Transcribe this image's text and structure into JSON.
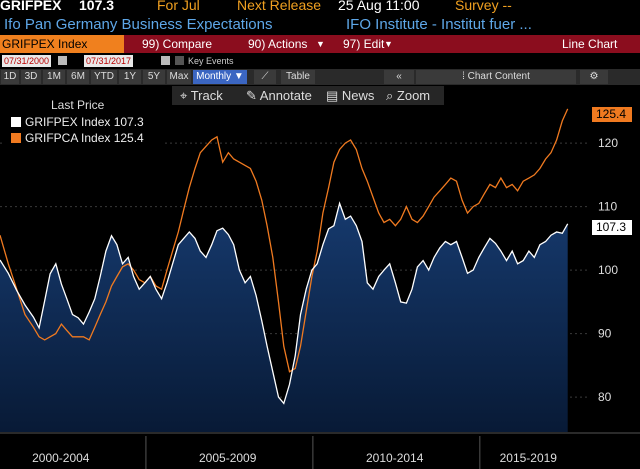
{
  "header": {
    "ticker": "GRIFPEX",
    "price": "107.3",
    "for_label": "For Jul",
    "next_release": "Next Release",
    "next_date": "25 Aug 11:00",
    "survey": "Survey --",
    "title": "Ifo Pan Germany Business Expectations",
    "source": "IFO Institute - Institut fuer ..."
  },
  "toolbar": {
    "ticker_box": "GRIFPEX Index",
    "compare": "99) Compare",
    "actions": "90) Actions",
    "edit": "97) Edit",
    "chart_type": "Line Chart"
  },
  "dates": {
    "start": "07/31/2000",
    "end": "07/31/2017",
    "key_events": "Key  Events"
  },
  "range_buttons": [
    "1D",
    "3D",
    "1M",
    "6M",
    "YTD",
    "1Y",
    "5Y",
    "Max"
  ],
  "period": "Monthly",
  "table_label": "Table",
  "chart_content": "Chart Content",
  "tools": {
    "track": "Track",
    "annotate": "Annotate",
    "news": "News",
    "zoom": "Zoom"
  },
  "legend": {
    "title": "Last Price",
    "s1": "GRIFPEX Index 107.3",
    "s2": "GRIFPCA Index 125.4"
  },
  "colors": {
    "white": "#ffffff",
    "orange": "#f07a20",
    "area": "#0c2a52",
    "toolbar": "#8b0d1e"
  },
  "chart_data": {
    "type": "line",
    "ylim": [
      74.5,
      129
    ],
    "y_ticks": [
      80,
      90,
      100,
      110,
      120
    ],
    "x_labels": [
      "2000-2004",
      "2005-2009",
      "2010-2014",
      "2015-2019"
    ],
    "last_values": {
      "GRIFPEX": "107.3",
      "GRIFPCA": "125.4"
    },
    "series": [
      {
        "name": "GRIFPEX Index",
        "color": "#ffffff",
        "points": [
          [
            2000.58,
            101.6
          ],
          [
            2000.83,
            99.5
          ],
          [
            2001.08,
            96.8
          ],
          [
            2001.33,
            94.5
          ],
          [
            2001.58,
            92.6
          ],
          [
            2001.75,
            90.9
          ],
          [
            2001.92,
            95.2
          ],
          [
            2002.08,
            99.4
          ],
          [
            2002.25,
            101.0
          ],
          [
            2002.42,
            97.8
          ],
          [
            2002.58,
            95.5
          ],
          [
            2002.75,
            93.0
          ],
          [
            2002.92,
            92.5
          ],
          [
            2003.08,
            91.5
          ],
          [
            2003.25,
            93.4
          ],
          [
            2003.42,
            95.5
          ],
          [
            2003.58,
            99.0
          ],
          [
            2003.75,
            103.0
          ],
          [
            2003.92,
            105.4
          ],
          [
            2004.08,
            104.0
          ],
          [
            2004.25,
            101.0
          ],
          [
            2004.42,
            102.0
          ],
          [
            2004.58,
            99.0
          ],
          [
            2004.75,
            97.0
          ],
          [
            2004.92,
            98.0
          ],
          [
            2005.08,
            99.0
          ],
          [
            2005.25,
            97.0
          ],
          [
            2005.42,
            95.5
          ],
          [
            2005.58,
            98.0
          ],
          [
            2005.75,
            101.0
          ],
          [
            2005.92,
            104.0
          ],
          [
            2006.08,
            105.0
          ],
          [
            2006.25,
            106.0
          ],
          [
            2006.42,
            105.0
          ],
          [
            2006.58,
            103.0
          ],
          [
            2006.75,
            102.0
          ],
          [
            2006.92,
            104.0
          ],
          [
            2007.08,
            106.2
          ],
          [
            2007.25,
            106.6
          ],
          [
            2007.42,
            105.6
          ],
          [
            2007.58,
            104.0
          ],
          [
            2007.75,
            100.0
          ],
          [
            2007.92,
            98.0
          ],
          [
            2008.08,
            99.0
          ],
          [
            2008.25,
            96.0
          ],
          [
            2008.42,
            92.0
          ],
          [
            2008.58,
            88.0
          ],
          [
            2008.75,
            84.0
          ],
          [
            2008.92,
            80.0
          ],
          [
            2009.08,
            79.0
          ],
          [
            2009.25,
            82.0
          ],
          [
            2009.42,
            86.5
          ],
          [
            2009.58,
            93.0
          ],
          [
            2009.75,
            97.0
          ],
          [
            2009.92,
            100.0
          ],
          [
            2010.08,
            101.0
          ],
          [
            2010.25,
            104.0
          ],
          [
            2010.42,
            106.5
          ],
          [
            2010.58,
            107.0
          ],
          [
            2010.75,
            110.5
          ],
          [
            2010.92,
            108.0
          ],
          [
            2011.08,
            108.5
          ],
          [
            2011.25,
            107.0
          ],
          [
            2011.42,
            104.5
          ],
          [
            2011.58,
            98.0
          ],
          [
            2011.75,
            97.0
          ],
          [
            2011.92,
            99.0
          ],
          [
            2012.08,
            100.0
          ],
          [
            2012.25,
            101.0
          ],
          [
            2012.42,
            98.0
          ],
          [
            2012.58,
            95.0
          ],
          [
            2012.75,
            94.8
          ],
          [
            2012.92,
            97.0
          ],
          [
            2013.08,
            100.5
          ],
          [
            2013.25,
            101.5
          ],
          [
            2013.42,
            100.0
          ],
          [
            2013.58,
            102.0
          ],
          [
            2013.75,
            103.5
          ],
          [
            2013.92,
            104.5
          ],
          [
            2014.08,
            104.0
          ],
          [
            2014.25,
            104.5
          ],
          [
            2014.42,
            102.0
          ],
          [
            2014.58,
            99.5
          ],
          [
            2014.75,
            100.0
          ],
          [
            2014.92,
            102.0
          ],
          [
            2015.08,
            103.5
          ],
          [
            2015.25,
            105.0
          ],
          [
            2015.42,
            104.2
          ],
          [
            2015.58,
            103.0
          ],
          [
            2015.75,
            101.5
          ],
          [
            2015.92,
            103.0
          ],
          [
            2016.08,
            101.0
          ],
          [
            2016.25,
            101.5
          ],
          [
            2016.42,
            103.0
          ],
          [
            2016.58,
            102.0
          ],
          [
            2016.75,
            104.0
          ],
          [
            2016.92,
            104.5
          ],
          [
            2017.08,
            105.5
          ],
          [
            2017.25,
            106.0
          ],
          [
            2017.42,
            105.8
          ],
          [
            2017.58,
            107.3
          ]
        ]
      },
      {
        "name": "GRIFPCA Index",
        "color": "#f07a20",
        "points": [
          [
            2000.58,
            105.5
          ],
          [
            2000.83,
            101.0
          ],
          [
            2001.08,
            97.0
          ],
          [
            2001.33,
            93.0
          ],
          [
            2001.58,
            91.0
          ],
          [
            2001.75,
            89.5
          ],
          [
            2001.92,
            89.0
          ],
          [
            2002.08,
            89.5
          ],
          [
            2002.25,
            90.0
          ],
          [
            2002.42,
            91.5
          ],
          [
            2002.58,
            90.5
          ],
          [
            2002.75,
            89.5
          ],
          [
            2002.92,
            89.5
          ],
          [
            2003.08,
            89.5
          ],
          [
            2003.25,
            89.0
          ],
          [
            2003.42,
            91.0
          ],
          [
            2003.58,
            93.0
          ],
          [
            2003.75,
            95.0
          ],
          [
            2003.92,
            97.5
          ],
          [
            2004.08,
            99.0
          ],
          [
            2004.25,
            100.5
          ],
          [
            2004.42,
            101.0
          ],
          [
            2004.58,
            100.0
          ],
          [
            2004.75,
            98.5
          ],
          [
            2004.92,
            98.0
          ],
          [
            2005.08,
            99.0
          ],
          [
            2005.25,
            97.5
          ],
          [
            2005.42,
            97.0
          ],
          [
            2005.58,
            100.0
          ],
          [
            2005.75,
            103.0
          ],
          [
            2005.92,
            106.0
          ],
          [
            2006.08,
            109.5
          ],
          [
            2006.25,
            113.0
          ],
          [
            2006.42,
            116.0
          ],
          [
            2006.58,
            118.5
          ],
          [
            2006.75,
            119.5
          ],
          [
            2006.92,
            120.5
          ],
          [
            2007.08,
            121.0
          ],
          [
            2007.25,
            117.0
          ],
          [
            2007.42,
            118.5
          ],
          [
            2007.58,
            117.5
          ],
          [
            2007.75,
            117.0
          ],
          [
            2007.92,
            116.5
          ],
          [
            2008.08,
            116.0
          ],
          [
            2008.25,
            114.0
          ],
          [
            2008.42,
            111.0
          ],
          [
            2008.58,
            107.0
          ],
          [
            2008.75,
            102.0
          ],
          [
            2008.92,
            95.0
          ],
          [
            2009.08,
            88.0
          ],
          [
            2009.25,
            84.0
          ],
          [
            2009.42,
            84.5
          ],
          [
            2009.58,
            88.0
          ],
          [
            2009.75,
            93.5
          ],
          [
            2009.92,
            99.0
          ],
          [
            2010.08,
            103.0
          ],
          [
            2010.25,
            109.0
          ],
          [
            2010.42,
            113.0
          ],
          [
            2010.58,
            117.0
          ],
          [
            2010.75,
            119.0
          ],
          [
            2010.92,
            120.0
          ],
          [
            2011.08,
            120.5
          ],
          [
            2011.25,
            119.0
          ],
          [
            2011.42,
            116.0
          ],
          [
            2011.58,
            114.0
          ],
          [
            2011.75,
            111.5
          ],
          [
            2011.92,
            109.0
          ],
          [
            2012.08,
            107.5
          ],
          [
            2012.25,
            108.0
          ],
          [
            2012.42,
            107.0
          ],
          [
            2012.58,
            108.0
          ],
          [
            2012.75,
            110.0
          ],
          [
            2012.92,
            108.0
          ],
          [
            2013.08,
            107.5
          ],
          [
            2013.25,
            108.5
          ],
          [
            2013.42,
            110.0
          ],
          [
            2013.58,
            111.5
          ],
          [
            2013.75,
            112.5
          ],
          [
            2013.92,
            113.5
          ],
          [
            2014.08,
            114.5
          ],
          [
            2014.25,
            114.0
          ],
          [
            2014.42,
            111.0
          ],
          [
            2014.58,
            109.0
          ],
          [
            2014.75,
            110.0
          ],
          [
            2014.92,
            110.5
          ],
          [
            2015.08,
            112.0
          ],
          [
            2015.25,
            113.5
          ],
          [
            2015.42,
            113.0
          ],
          [
            2015.58,
            114.5
          ],
          [
            2015.75,
            113.0
          ],
          [
            2015.92,
            113.5
          ],
          [
            2016.08,
            112.5
          ],
          [
            2016.25,
            114.0
          ],
          [
            2016.42,
            114.5
          ],
          [
            2016.58,
            115.0
          ],
          [
            2016.75,
            116.0
          ],
          [
            2016.92,
            117.5
          ],
          [
            2017.08,
            118.5
          ],
          [
            2017.25,
            120.5
          ],
          [
            2017.42,
            123.5
          ],
          [
            2017.58,
            125.4
          ]
        ]
      }
    ]
  }
}
